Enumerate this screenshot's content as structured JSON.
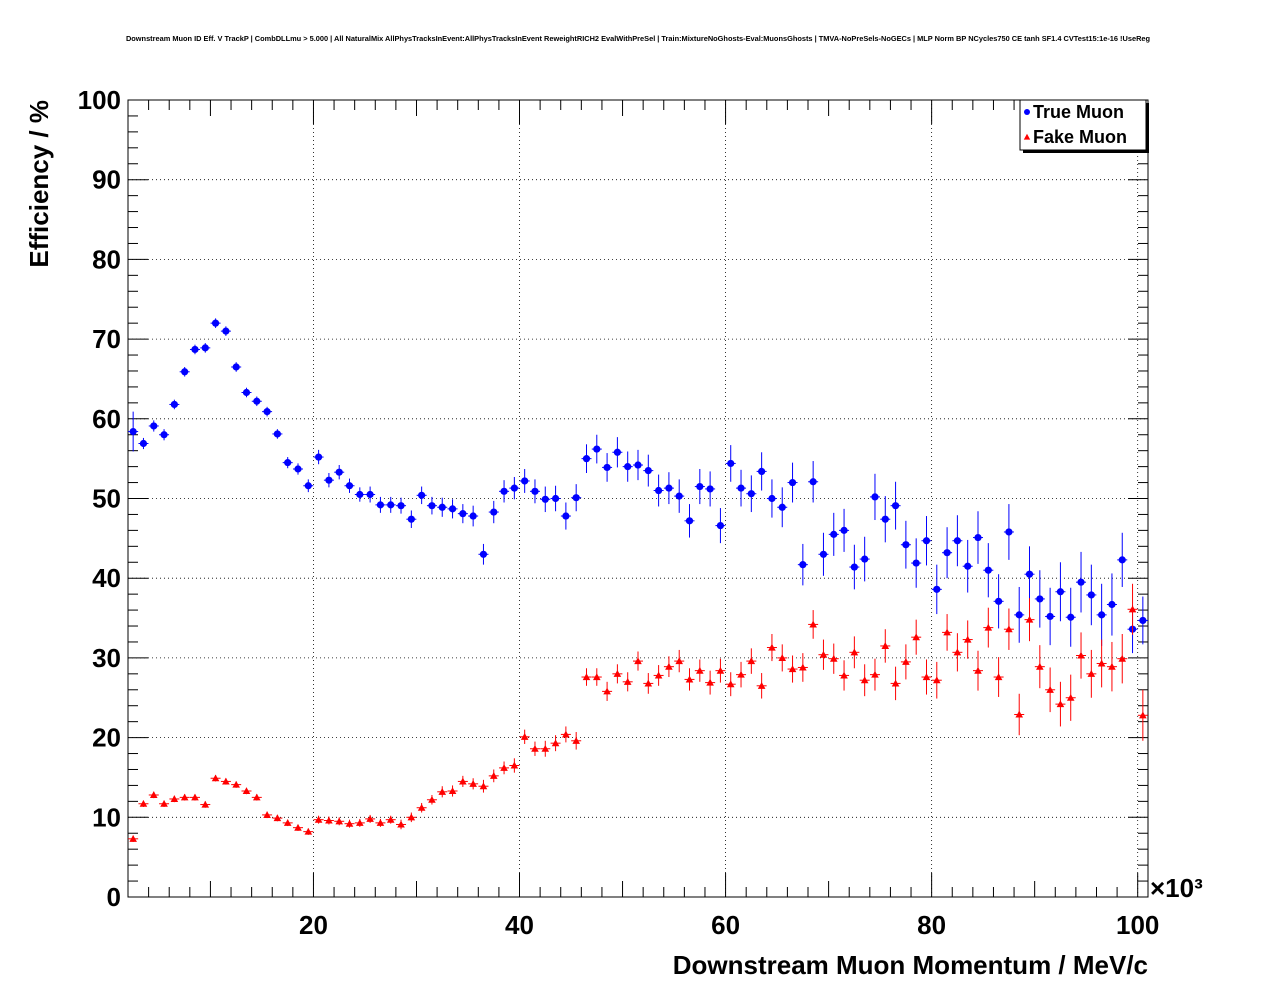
{
  "title": "Downstream Muon ID Eff. V TrackP | CombDLLmu > 5.000 | All NaturalMix AllPhysTracksInEvent:AllPhysTracksInEvent ReweightRICH2 EvalWithPreSel | Train:MixtureNoGhosts-Eval:MuonsGhosts | TMVA-NoPreSels-NoGECs | MLP Norm BP NCycles750 CE tanh SF1.4 CVTest15:1e-16 !UseReg",
  "chart_data": {
    "type": "scatter",
    "xlabel": "Downstream Muon Momentum / MeV/c",
    "ylabel": "Efficiency / %",
    "x_multiplier_label": "×10³",
    "xlim": [
      2000,
      101000
    ],
    "ylim": [
      0,
      100
    ],
    "x_ticks": [
      20000,
      40000,
      60000,
      80000,
      100000
    ],
    "x_tick_labels": [
      "20",
      "40",
      "60",
      "80",
      "100"
    ],
    "y_ticks": [
      0,
      10,
      20,
      30,
      40,
      50,
      60,
      70,
      80,
      90,
      100
    ],
    "y_tick_labels": [
      "0",
      "10",
      "20",
      "30",
      "40",
      "50",
      "60",
      "70",
      "80",
      "90",
      "100"
    ],
    "grid": true,
    "legend_position": "top-right",
    "series": [
      {
        "name": "True Muon",
        "color": "#0000ff",
        "marker": "circle",
        "x": [
          2500,
          3500,
          4500,
          5500,
          6500,
          7500,
          8500,
          9500,
          10500,
          11500,
          12500,
          13500,
          14500,
          15500,
          16500,
          17500,
          18500,
          19500,
          20500,
          21500,
          22500,
          23500,
          24500,
          25500,
          26500,
          27500,
          28500,
          29500,
          30500,
          31500,
          32500,
          33500,
          34500,
          35500,
          36500,
          37500,
          38500,
          39500,
          40500,
          41500,
          42500,
          43500,
          44500,
          45500,
          46500,
          47500,
          48500,
          49500,
          50500,
          51500,
          52500,
          53500,
          54500,
          55500,
          56500,
          57500,
          58500,
          59500,
          60500,
          61500,
          62500,
          63500,
          64500,
          65500,
          66500,
          67500,
          68500,
          69500,
          70500,
          71500,
          72500,
          73500,
          74500,
          75500,
          76500,
          77500,
          78500,
          79500,
          80500,
          81500,
          82500,
          83500,
          84500,
          85500,
          86500,
          87500,
          88500,
          89500,
          90500,
          91500,
          92500,
          93500,
          94500,
          95500,
          96500,
          97500,
          98500,
          99500,
          100500
        ],
        "y": [
          58.4,
          56.9,
          59.1,
          58.0,
          61.8,
          65.9,
          68.7,
          68.9,
          72.0,
          71.0,
          66.5,
          63.3,
          62.2,
          60.9,
          58.1,
          54.5,
          53.7,
          51.6,
          55.2,
          52.3,
          53.3,
          51.6,
          50.5,
          50.5,
          49.2,
          49.2,
          49.1,
          47.4,
          50.4,
          49.1,
          48.9,
          48.7,
          48.1,
          47.8,
          43.0,
          48.3,
          50.9,
          51.3,
          52.2,
          50.9,
          49.9,
          50.0,
          47.8,
          50.1,
          55.0,
          56.2,
          53.9,
          55.8,
          54.0,
          54.2,
          53.5,
          51.0,
          51.3,
          50.3,
          47.2,
          51.5,
          51.2,
          46.6,
          54.4,
          51.3,
          50.6,
          53.4,
          50.0,
          48.9,
          52.0,
          41.7,
          52.1,
          43.0,
          45.5,
          46.0,
          41.4,
          42.4,
          50.2,
          47.4,
          49.1,
          44.2,
          41.9,
          44.7,
          38.6,
          43.2,
          44.7,
          41.5,
          45.1,
          41.0,
          37.1,
          45.8,
          35.4,
          40.5,
          37.4,
          35.2,
          38.3,
          35.1,
          39.5,
          37.9,
          35.4,
          36.7,
          42.3,
          33.6,
          34.7
        ],
        "err": [
          2.5,
          0.7,
          0.7,
          0.7,
          0.6,
          0.6,
          0.6,
          0.6,
          0.6,
          0.6,
          0.6,
          0.6,
          0.6,
          0.6,
          0.6,
          0.7,
          0.7,
          0.8,
          0.9,
          0.9,
          0.9,
          0.9,
          0.9,
          1.0,
          1.0,
          1.0,
          1.0,
          1.1,
          1.1,
          1.1,
          1.2,
          1.2,
          1.2,
          1.3,
          1.3,
          1.4,
          1.4,
          1.4,
          1.5,
          1.5,
          1.6,
          1.6,
          1.7,
          1.7,
          1.8,
          1.8,
          1.8,
          1.9,
          1.9,
          1.9,
          2.0,
          2.0,
          2.0,
          2.1,
          2.1,
          2.2,
          2.2,
          2.2,
          2.3,
          2.3,
          2.3,
          2.4,
          2.4,
          2.5,
          2.5,
          2.6,
          2.6,
          2.7,
          2.7,
          2.7,
          2.8,
          2.8,
          2.9,
          2.9,
          3.0,
          3.0,
          3.1,
          3.1,
          3.1,
          3.2,
          3.2,
          3.3,
          3.3,
          3.4,
          3.4,
          3.5,
          3.5,
          3.5,
          3.6,
          3.6,
          3.7,
          3.7,
          3.8,
          3.8,
          3.9,
          3.9,
          3.4,
          3.0,
          3.0
        ]
      },
      {
        "name": "Fake Muon",
        "color": "#ff0000",
        "marker": "triangle",
        "x": [
          2500,
          3500,
          4500,
          5500,
          6500,
          7500,
          8500,
          9500,
          10500,
          11500,
          12500,
          13500,
          14500,
          15500,
          16500,
          17500,
          18500,
          19500,
          20500,
          21500,
          22500,
          23500,
          24500,
          25500,
          26500,
          27500,
          28500,
          29500,
          30500,
          31500,
          32500,
          33500,
          34500,
          35500,
          36500,
          37500,
          38500,
          39500,
          40500,
          41500,
          42500,
          43500,
          44500,
          45500,
          46500,
          47500,
          48500,
          49500,
          50500,
          51500,
          52500,
          53500,
          54500,
          55500,
          56500,
          57500,
          58500,
          59500,
          60500,
          61500,
          62500,
          63500,
          64500,
          65500,
          66500,
          67500,
          68500,
          69500,
          70500,
          71500,
          72500,
          73500,
          74500,
          75500,
          76500,
          77500,
          78500,
          79500,
          80500,
          81500,
          82500,
          83500,
          84500,
          85500,
          86500,
          87500,
          88500,
          89500,
          90500,
          91500,
          92500,
          93500,
          94500,
          95500,
          96500,
          97500,
          98500,
          99500,
          100500
        ],
        "y": [
          7.3,
          11.7,
          12.8,
          11.7,
          12.3,
          12.5,
          12.5,
          11.6,
          14.9,
          14.5,
          14.1,
          13.3,
          12.5,
          10.3,
          9.9,
          9.3,
          8.7,
          8.2,
          9.7,
          9.6,
          9.5,
          9.2,
          9.3,
          9.8,
          9.3,
          9.7,
          9.1,
          10.0,
          11.2,
          12.2,
          13.2,
          13.3,
          14.5,
          14.2,
          13.9,
          15.2,
          16.2,
          16.5,
          20.1,
          18.6,
          18.6,
          19.3,
          20.4,
          19.6,
          27.6,
          27.6,
          25.8,
          28.0,
          27.0,
          29.6,
          26.8,
          27.8,
          28.9,
          29.6,
          27.3,
          28.4,
          26.9,
          28.4,
          26.7,
          27.9,
          29.6,
          26.5,
          31.3,
          30.0,
          28.6,
          28.8,
          34.2,
          30.4,
          29.9,
          27.8,
          30.7,
          27.2,
          27.9,
          31.5,
          26.8,
          29.5,
          32.6,
          27.6,
          27.2,
          33.2,
          30.7,
          32.3,
          28.4,
          33.8,
          27.6,
          33.6,
          22.9,
          34.8,
          28.9,
          26.0,
          24.2,
          25.0,
          30.3,
          28.0,
          29.3,
          28.9,
          29.9,
          36.1,
          22.8
        ],
        "err": [
          0.4,
          0.4,
          0.4,
          0.4,
          0.4,
          0.4,
          0.4,
          0.4,
          0.4,
          0.4,
          0.4,
          0.4,
          0.4,
          0.4,
          0.4,
          0.4,
          0.4,
          0.4,
          0.5,
          0.5,
          0.5,
          0.5,
          0.5,
          0.5,
          0.5,
          0.5,
          0.6,
          0.6,
          0.6,
          0.6,
          0.7,
          0.7,
          0.7,
          0.7,
          0.8,
          0.8,
          0.8,
          0.9,
          0.9,
          0.9,
          1.0,
          1.0,
          1.0,
          1.1,
          1.1,
          1.1,
          1.2,
          1.2,
          1.2,
          1.2,
          1.3,
          1.3,
          1.3,
          1.4,
          1.4,
          1.4,
          1.5,
          1.5,
          1.5,
          1.6,
          1.6,
          1.6,
          1.7,
          1.7,
          1.7,
          1.8,
          1.8,
          1.9,
          1.9,
          1.9,
          2.0,
          2.0,
          2.0,
          2.1,
          2.1,
          2.2,
          2.2,
          2.2,
          2.3,
          2.3,
          2.4,
          2.4,
          2.5,
          2.5,
          2.5,
          2.6,
          2.6,
          2.7,
          2.7,
          2.8,
          2.8,
          2.9,
          2.9,
          3.0,
          3.0,
          3.1,
          3.1,
          3.2,
          3.2
        ]
      }
    ]
  }
}
